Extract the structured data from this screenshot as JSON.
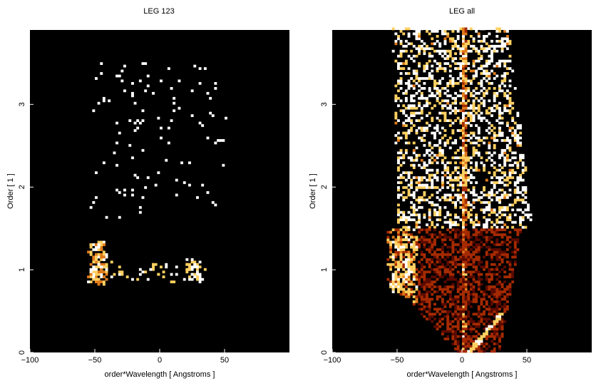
{
  "chart_data": [
    {
      "type": "heatmap",
      "title": "LEG 123",
      "xlabel": "order*Wavelength [ Angstroms ]",
      "ylabel": "Order [ 1 ]",
      "xlim": [
        -100,
        100
      ],
      "ylim": [
        0,
        3.9
      ],
      "xticks": [
        {
          "value": -100,
          "label": "−100"
        },
        {
          "value": -50,
          "label": "−50"
        },
        {
          "value": 0,
          "label": "0"
        },
        {
          "value": 50,
          "label": "50"
        }
      ],
      "yticks": [
        {
          "value": 0,
          "label": "0"
        },
        {
          "value": 1,
          "label": "1"
        },
        {
          "value": 2,
          "label": "2"
        },
        {
          "value": 3,
          "label": "3"
        }
      ],
      "grid": false,
      "background": "#000000",
      "colormap": [
        "#000000",
        "#5a0a00",
        "#a52a00",
        "#e07a1a",
        "#ffd060",
        "#ffffff"
      ]
    },
    {
      "type": "heatmap",
      "title": "LEG all",
      "xlabel": "order*Wavelength [ Angstroms ]",
      "ylabel": "Order [ 1 ]",
      "xlim": [
        -100,
        100
      ],
      "ylim": [
        0,
        3.9
      ],
      "xticks": [
        {
          "value": -100,
          "label": "−100"
        },
        {
          "value": -50,
          "label": "−50"
        },
        {
          "value": 0,
          "label": "0"
        },
        {
          "value": 50,
          "label": "50"
        }
      ],
      "yticks": [
        {
          "value": 0,
          "label": "0"
        },
        {
          "value": 1,
          "label": "1"
        },
        {
          "value": 2,
          "label": "2"
        },
        {
          "value": 3,
          "label": "3"
        }
      ],
      "grid": false,
      "background": "#000000",
      "colormap": [
        "#000000",
        "#5a0a00",
        "#a52a00",
        "#e07a1a",
        "#ffd060",
        "#ffffff"
      ]
    }
  ]
}
